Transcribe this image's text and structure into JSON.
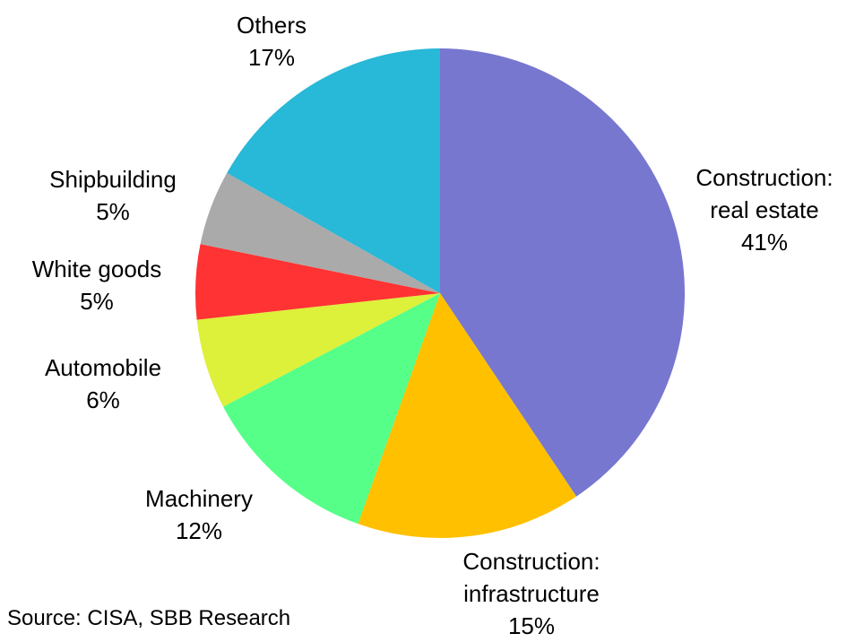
{
  "chart_data": {
    "type": "pie",
    "categories": [
      "Construction: real estate",
      "Construction: infrastructure",
      "Machinery",
      "Automobile",
      "White goods",
      "Shipbuilding",
      "Others"
    ],
    "values": [
      41,
      15,
      12,
      6,
      5,
      5,
      17
    ],
    "value_labels": [
      "41%",
      "15%",
      "12%",
      "6%",
      "5%",
      "5%",
      "17%"
    ],
    "colors": [
      "#7777d0",
      "#ffc000",
      "#55ff88",
      "#ddf03a",
      "#ff3333",
      "#aaaaaa",
      "#28b8d8"
    ],
    "source": "Source: CISA, SBB Research"
  }
}
